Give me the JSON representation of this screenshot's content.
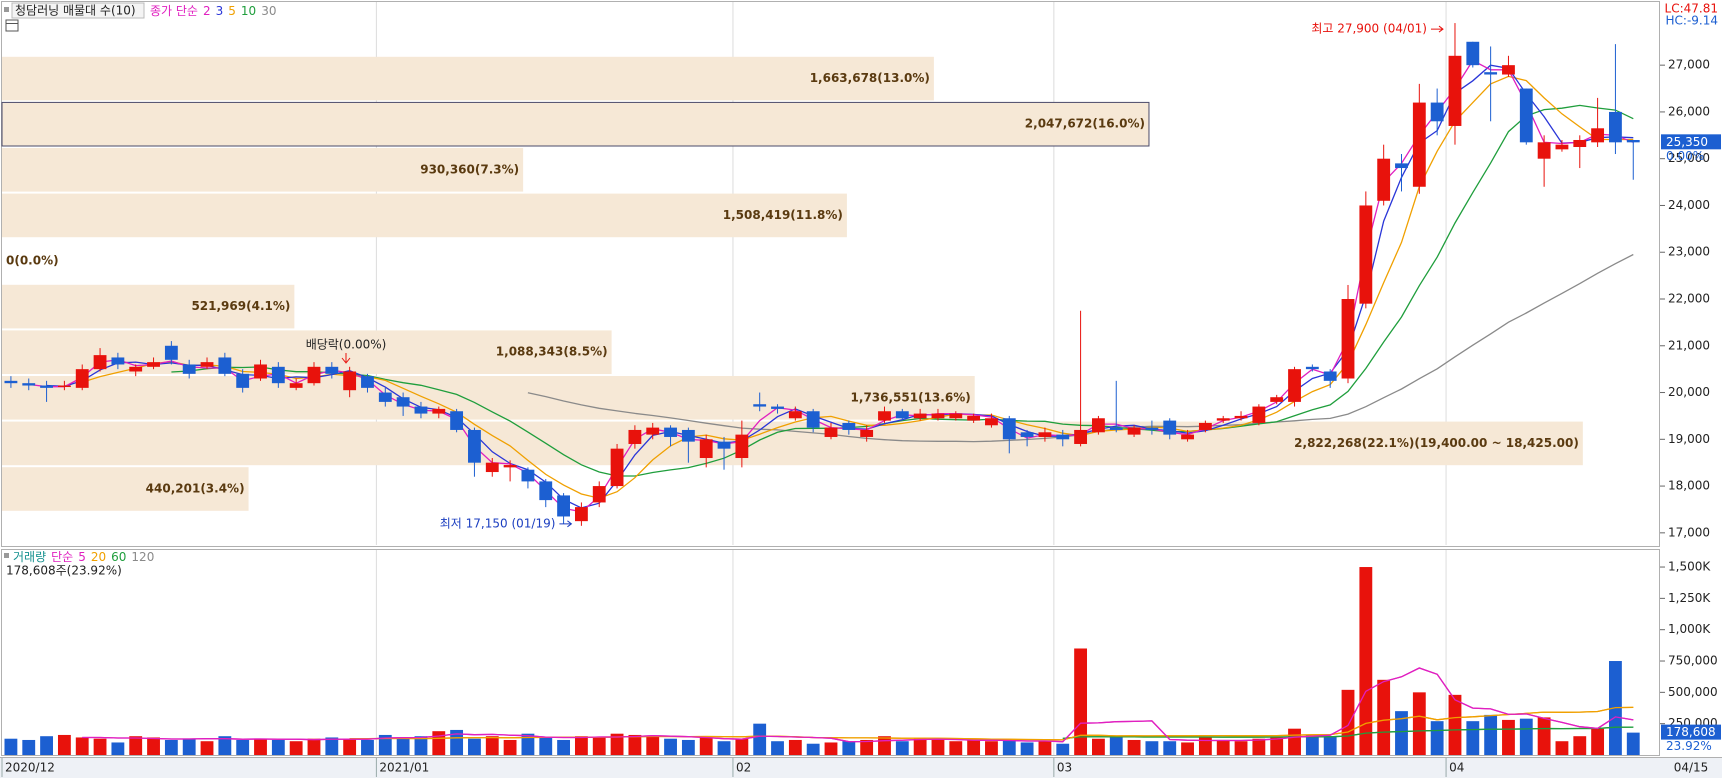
{
  "chart_data": {
    "type": "candlestick",
    "title": "청담러닝 매물대 수(10)",
    "price_legend": "종가 단순",
    "moving_averages": [
      {
        "period": 2,
        "color": "#e020c0"
      },
      {
        "period": 3,
        "color": "#2a36d8"
      },
      {
        "period": 5,
        "color": "#f0a000"
      },
      {
        "period": 10,
        "color": "#1f9e3c"
      },
      {
        "period": 30,
        "color": "#8a8a8a"
      }
    ],
    "lc_label": "LC:47.81",
    "hc_label": "HC:-9.14",
    "categories": [
      "2020/12",
      null,
      null,
      null,
      null,
      null,
      null,
      null,
      null,
      null,
      null,
      null,
      null,
      null,
      null,
      null,
      null,
      null,
      null,
      null,
      null,
      "2021/01",
      null,
      null,
      null,
      null,
      null,
      null,
      null,
      null,
      null,
      null,
      null,
      null,
      null,
      null,
      null,
      null,
      null,
      null,
      null,
      "02",
      null,
      null,
      null,
      null,
      null,
      null,
      null,
      null,
      null,
      null,
      null,
      null,
      null,
      null,
      null,
      null,
      null,
      "03",
      null,
      null,
      null,
      null,
      null,
      null,
      null,
      null,
      null,
      null,
      null,
      null,
      null,
      null,
      null,
      null,
      null,
      null,
      null,
      null,
      null,
      "04",
      null,
      null,
      null,
      null,
      null,
      null,
      null,
      null,
      null,
      null
    ],
    "last_date": "04/15",
    "open": [
      20250,
      20200,
      20150,
      20150,
      20100,
      20500,
      20750,
      20450,
      20550,
      21000,
      20600,
      20550,
      20750,
      20400,
      20300,
      20550,
      20100,
      20200,
      20550,
      20050,
      20350,
      20000,
      19900,
      19700,
      19550,
      19600,
      19200,
      18300,
      18400,
      18350,
      18100,
      17800,
      17250,
      17650,
      18000,
      18900,
      19100,
      19250,
      19200,
      18600,
      18950,
      18600,
      19750,
      19700,
      19450,
      19600,
      19050,
      19350,
      19050,
      19400,
      19600,
      19450,
      19450,
      19450,
      19400,
      19300,
      19450,
      19150,
      19050,
      19100,
      18900,
      19150,
      19250,
      19100,
      19250,
      19400,
      19000,
      19200,
      19400,
      19450,
      19350,
      19800,
      19800,
      20550,
      20450,
      20300,
      21900,
      24100,
      24900,
      24400,
      26200,
      25700,
      27500,
      26850,
      26800,
      26500,
      25000,
      25200,
      25250,
      25350,
      26000,
      25400
    ],
    "high": [
      20350,
      20300,
      20250,
      20250,
      20600,
      20950,
      20850,
      20600,
      20750,
      21100,
      20700,
      20750,
      20850,
      20500,
      20700,
      20650,
      20300,
      20650,
      20650,
      20550,
      20400,
      20100,
      20000,
      19800,
      19700,
      19650,
      19250,
      18600,
      18550,
      18400,
      18150,
      17850,
      17650,
      18100,
      18900,
      19300,
      19350,
      19300,
      19250,
      19100,
      19050,
      19400,
      20000,
      19750,
      19700,
      19650,
      19350,
      19400,
      19300,
      19700,
      19650,
      19650,
      19650,
      19600,
      19550,
      19550,
      19500,
      19200,
      19250,
      19200,
      21750,
      19500,
      20250,
      19300,
      19400,
      19450,
      19200,
      19400,
      19500,
      19600,
      19750,
      19950,
      20550,
      20600,
      20500,
      22300,
      24300,
      25300,
      25100,
      26600,
      26500,
      27900,
      27500,
      27400,
      27200,
      26500,
      25500,
      25400,
      25500,
      26300,
      27450,
      25400
    ],
    "low": [
      20100,
      20050,
      19800,
      20050,
      20050,
      20450,
      20500,
      20350,
      20500,
      20600,
      20300,
      20500,
      20350,
      20000,
      20250,
      20100,
      20050,
      20150,
      20300,
      19900,
      20000,
      19700,
      19500,
      19450,
      19450,
      19150,
      18200,
      18200,
      18100,
      17950,
      17550,
      17200,
      17150,
      17550,
      17950,
      18800,
      19000,
      18850,
      18500,
      18400,
      18350,
      18400,
      19600,
      19550,
      19400,
      19150,
      19000,
      19100,
      18950,
      19350,
      19400,
      19400,
      19400,
      19400,
      19350,
      19250,
      18700,
      18850,
      18950,
      18850,
      18850,
      19100,
      19150,
      19050,
      19100,
      19000,
      18950,
      19150,
      19350,
      19400,
      19300,
      19750,
      19700,
      20450,
      20100,
      20200,
      21800,
      24000,
      24300,
      24250,
      25500,
      25300,
      26950,
      25800,
      26750,
      25300,
      24400,
      25150,
      24800,
      25250,
      25100,
      24550
    ],
    "close": [
      20200,
      20150,
      20100,
      20150,
      20500,
      20800,
      20600,
      20550,
      20650,
      20700,
      20400,
      20650,
      20400,
      20100,
      20600,
      20200,
      20200,
      20550,
      20400,
      20450,
      20100,
      19800,
      19700,
      19550,
      19650,
      19200,
      18500,
      18500,
      18450,
      18100,
      17700,
      17350,
      17550,
      18000,
      18800,
      19200,
      19250,
      19050,
      18950,
      19000,
      18800,
      19100,
      19700,
      19650,
      19600,
      19250,
      19250,
      19200,
      19200,
      19600,
      19450,
      19550,
      19550,
      19550,
      19500,
      19450,
      19000,
      19050,
      19150,
      19000,
      19200,
      19450,
      19200,
      19250,
      19200,
      19100,
      19100,
      19350,
      19450,
      19500,
      19700,
      19900,
      20500,
      20500,
      20250,
      22000,
      24000,
      25000,
      24800,
      26200,
      25800,
      27200,
      27000,
      26800,
      27000,
      25350,
      25350,
      25300,
      25400,
      25650,
      25350,
      25350
    ],
    "up_color": "#e8120c",
    "down_color": "#1c5fd1",
    "ylim": [
      16740,
      28265
    ],
    "yticks": [
      {
        "value": 17000,
        "label": "17,000"
      },
      {
        "value": 18000,
        "label": "18,000"
      },
      {
        "value": 19000,
        "label": "19,000"
      },
      {
        "value": 20000,
        "label": "20,000"
      },
      {
        "value": 21000,
        "label": "21,000"
      },
      {
        "value": 22000,
        "label": "22,000"
      },
      {
        "value": 23000,
        "label": "23,000"
      },
      {
        "value": 24000,
        "label": "24,000"
      },
      {
        "value": 25000,
        "label": "25,000"
      },
      {
        "value": 26000,
        "label": "26,000"
      },
      {
        "value": 27000,
        "label": "27,000"
      }
    ],
    "price_label": "25,350",
    "change_label": "0.00%",
    "volume_profile": {
      "bins": [
        17450,
        18425,
        19400,
        20375,
        21350,
        22325,
        23300,
        24275,
        25250,
        26225,
        27200
      ],
      "values": [
        440201,
        2822268,
        1736551,
        1088343,
        521969,
        0,
        1508419,
        930360,
        2047672,
        1663678
      ],
      "value_labels": [
        "440,201(3.4%)",
        "2,822,268(22.1%)(19,400.00 ~ 18,425.00)",
        "1,736,551(13.6%)",
        "1,088,343(8.5%)",
        "521,969(4.1%)",
        "0(0.0%)",
        "1,508,419(11.8%)",
        "930,360(7.3%)",
        "2,047,672(16.0%)",
        "1,663,678(13.0%)"
      ],
      "color": "#f6e8d6",
      "xlim": [
        0,
        2960000
      ]
    },
    "annotations": {
      "high": "최고 27,900 (04/01)",
      "low": "최저 17,150 (01/19)",
      "ex_dividend": "배당락(0.00%)"
    },
    "volume": {
      "legend": "거래량",
      "legend_method": "단순",
      "moving_averages": [
        {
          "period": 5,
          "color": "#e020c0"
        },
        {
          "period": 20,
          "color": "#f0a000"
        },
        {
          "period": 60,
          "color": "#1f9e3c"
        },
        {
          "period": 120,
          "color": "#8a8a8a"
        }
      ],
      "values": [
        130000,
        120000,
        150000,
        160000,
        140000,
        130000,
        100000,
        150000,
        140000,
        120000,
        130000,
        110000,
        150000,
        120000,
        130000,
        120000,
        110000,
        130000,
        140000,
        130000,
        120000,
        160000,
        140000,
        150000,
        190000,
        200000,
        130000,
        150000,
        120000,
        170000,
        140000,
        120000,
        150000,
        140000,
        170000,
        160000,
        150000,
        130000,
        120000,
        140000,
        110000,
        130000,
        250000,
        110000,
        120000,
        90000,
        100000,
        110000,
        120000,
        150000,
        110000,
        130000,
        120000,
        110000,
        120000,
        110000,
        120000,
        100000,
        110000,
        90000,
        850000,
        130000,
        150000,
        120000,
        110000,
        110000,
        100000,
        140000,
        120000,
        110000,
        130000,
        140000,
        210000,
        160000,
        150000,
        520000,
        1500000,
        600000,
        350000,
        500000,
        270000,
        480000,
        270000,
        320000,
        280000,
        290000,
        300000,
        110000,
        150000,
        210000,
        750000,
        178608
      ],
      "ylim": [
        0,
        1620000
      ],
      "yticks": [
        {
          "value": 250000,
          "label": "250,000"
        },
        {
          "value": 500000,
          "label": "500,000"
        },
        {
          "value": 750000,
          "label": "750,000"
        },
        {
          "value": 1000000,
          "label": "1,000K"
        },
        {
          "value": 1250000,
          "label": "1,250K"
        },
        {
          "value": 1500000,
          "label": "1,500K"
        }
      ],
      "summary": "178,608주(23.92%)",
      "value_label": "178,608",
      "pct_label": "23.92%"
    }
  }
}
